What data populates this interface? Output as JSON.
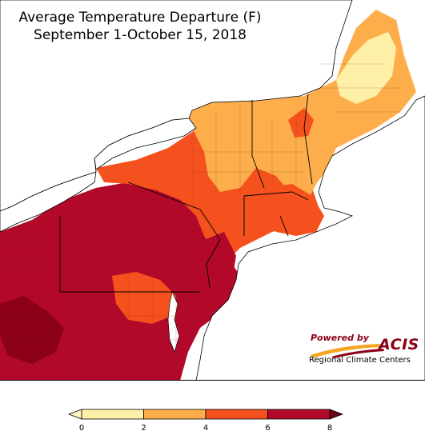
{
  "title": {
    "line1": "Average Temperature Departure (F)",
    "line2": "September 1-October 15, 2018"
  },
  "logo": {
    "powered_by": "Powered by",
    "brand": "ACIS",
    "subtitle": "Regional Climate Centers"
  },
  "legend": {
    "min_label": "0",
    "bins": [
      {
        "from": 0,
        "to": 2,
        "color": "#fff0a8"
      },
      {
        "from": 2,
        "to": 4,
        "color": "#fdae4b"
      },
      {
        "from": 4,
        "to": 6,
        "color": "#f4511e"
      },
      {
        "from": 6,
        "to": 8,
        "color": "#b2082a"
      }
    ],
    "tick_labels": [
      "0",
      "2",
      "4",
      "6",
      "8"
    ],
    "under_color": "#fff7c6",
    "over_color": "#6b0016"
  },
  "colors": {
    "lake": "#ffffff",
    "ocean": "#ffffff",
    "border": "#000000",
    "county": "#9a5a3a"
  }
}
